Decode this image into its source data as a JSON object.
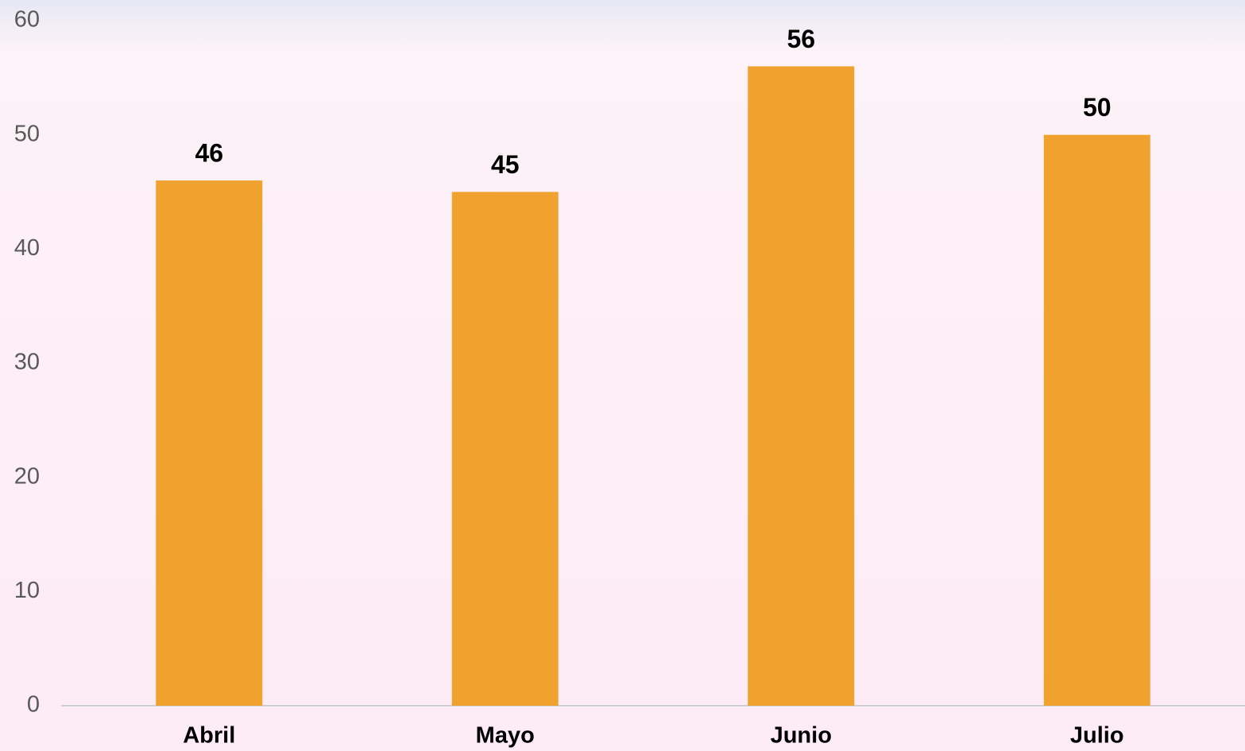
{
  "chart_data": {
    "type": "bar",
    "categories": [
      "Abril",
      "Mayo",
      "Junio",
      "Julio"
    ],
    "values": [
      46,
      45,
      56,
      50
    ],
    "color": "#efa22e",
    "ylim": [
      0,
      60
    ],
    "yticks": [
      0,
      10,
      20,
      30,
      40,
      50,
      60
    ],
    "grid": false,
    "data_labels": true
  }
}
